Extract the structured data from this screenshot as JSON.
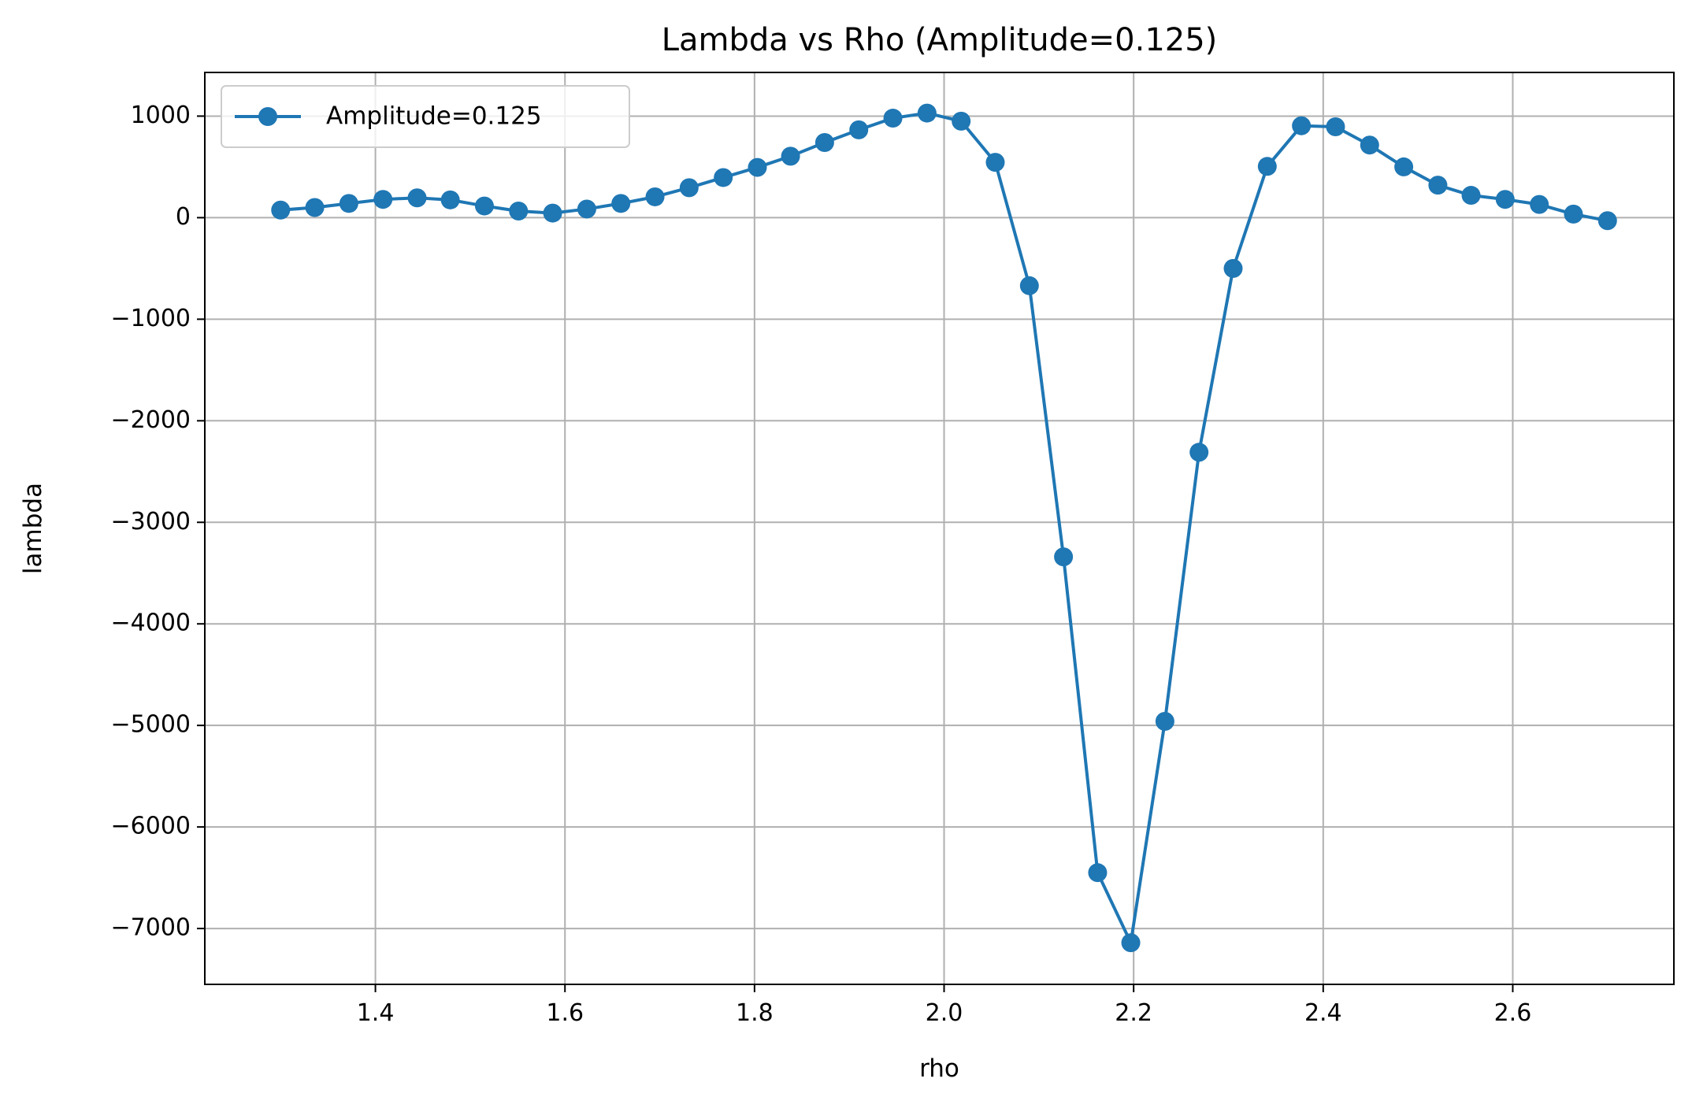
{
  "chart_data": {
    "type": "line",
    "title": "Lambda vs Rho (Amplitude=0.125)",
    "xlabel": "rho",
    "ylabel": "lambda",
    "xlim": [
      1.22,
      2.77
    ],
    "ylim": [
      -7550,
      1430
    ],
    "xticks": [
      1.4,
      1.6,
      1.8,
      2.0,
      2.2,
      2.4,
      2.6
    ],
    "xtick_labels": [
      "1.4",
      "1.6",
      "1.8",
      "2.0",
      "2.2",
      "2.4",
      "2.6"
    ],
    "yticks": [
      1000,
      0,
      -1000,
      -2000,
      -3000,
      -4000,
      -5000,
      -6000,
      -7000
    ],
    "ytick_labels": [
      "1000",
      "0",
      "−1000",
      "−2000",
      "−3000",
      "−4000",
      "−5000",
      "−6000",
      "−7000"
    ],
    "grid": true,
    "legend_position": "top-left",
    "colors": {
      "series": "#1f77b4",
      "grid": "#b0b0b0",
      "axes": "#000000"
    },
    "series": [
      {
        "name": "Amplitude=0.125",
        "marker": "circle",
        "x": [
          1.3,
          1.336,
          1.372,
          1.408,
          1.444,
          1.479,
          1.515,
          1.551,
          1.587,
          1.623,
          1.659,
          1.695,
          1.731,
          1.767,
          1.803,
          1.838,
          1.874,
          1.91,
          1.946,
          1.982,
          2.018,
          2.054,
          2.09,
          2.126,
          2.162,
          2.197,
          2.233,
          2.269,
          2.305,
          2.341,
          2.377,
          2.413,
          2.449,
          2.485,
          2.521,
          2.556,
          2.592,
          2.628,
          2.664,
          2.7
        ],
        "y": [
          75,
          100,
          140,
          180,
          195,
          175,
          115,
          65,
          45,
          85,
          140,
          205,
          295,
          395,
          495,
          605,
          740,
          865,
          980,
          1030,
          950,
          545,
          -670,
          -3340,
          -6450,
          -7140,
          -4960,
          -2310,
          -500,
          505,
          905,
          895,
          715,
          500,
          320,
          220,
          180,
          130,
          35,
          -30
        ]
      }
    ]
  }
}
